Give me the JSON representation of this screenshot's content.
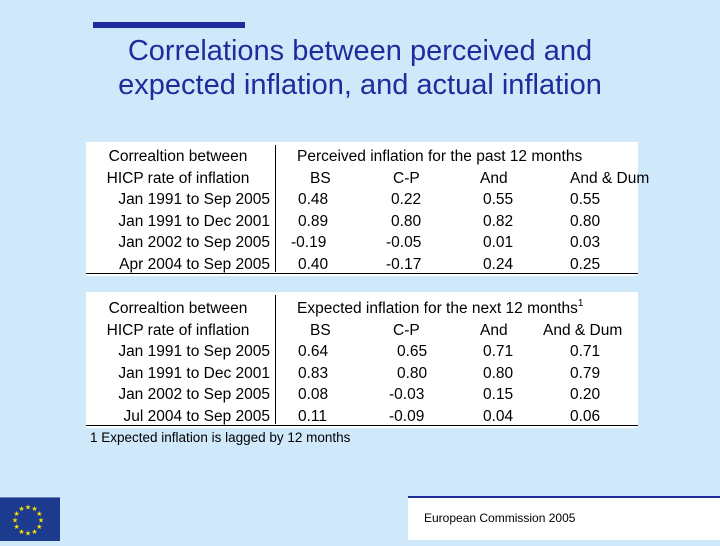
{
  "slide": {
    "title_lines": [
      "Correlations between perceived and",
      "expected inflation, and actual inflation"
    ],
    "footer_credit": "European Commission 2005",
    "colors": {
      "background": "#cfe9fb",
      "accent": "#1f2c9c",
      "flag": "#1c3a8e",
      "star": "#ffdd00"
    }
  },
  "tables": [
    {
      "row_header": [
        "Correaltion between",
        "HICP rate of inflation"
      ],
      "group_header": "Perceived inflation for the past 12 months",
      "group_header_sup": "",
      "columns": [
        "BS",
        "C-P",
        "And",
        "And & Dum"
      ],
      "rows": [
        {
          "label": "Jan 1991 to Sep 2005",
          "values": [
            "0.48",
            "0.22",
            "0.55",
            "0.55"
          ]
        },
        {
          "label": "Jan 1991 to Dec 2001",
          "values": [
            "0.89",
            "0.80",
            "0.82",
            "0.80"
          ]
        },
        {
          "label": "Jan 2002 to Sep 2005",
          "values": [
            "-0.19",
            "-0.05",
            "0.01",
            "0.03"
          ]
        },
        {
          "label": "Apr 2004 to Sep 2005",
          "values": [
            "0.40",
            "-0.17",
            "0.24",
            "0.25"
          ]
        }
      ]
    },
    {
      "row_header": [
        "Correaltion between",
        "HICP rate of inflation"
      ],
      "group_header": "Expected inflation for the next 12 months",
      "group_header_sup": "1",
      "columns": [
        "BS",
        "C-P",
        "And",
        "And & Dum"
      ],
      "rows": [
        {
          "label": "Jan 1991 to Sep 2005",
          "values": [
            "0.64",
            "0.65",
            "0.71",
            "0.71"
          ]
        },
        {
          "label": "Jan 1991 to Dec 2001",
          "values": [
            "0.83",
            "0.80",
            "0.80",
            "0.79"
          ]
        },
        {
          "label": "Jan 2002 to Sep 2005",
          "values": [
            "0.08",
            "-0.03",
            "0.15",
            "0.20"
          ]
        },
        {
          "label": "Jul 2004 to Sep 2005",
          "values": [
            "0.11",
            "-0.09",
            "0.04",
            "0.06"
          ]
        }
      ]
    }
  ],
  "footnote": "1 Expected inflation is lagged by 12 months"
}
